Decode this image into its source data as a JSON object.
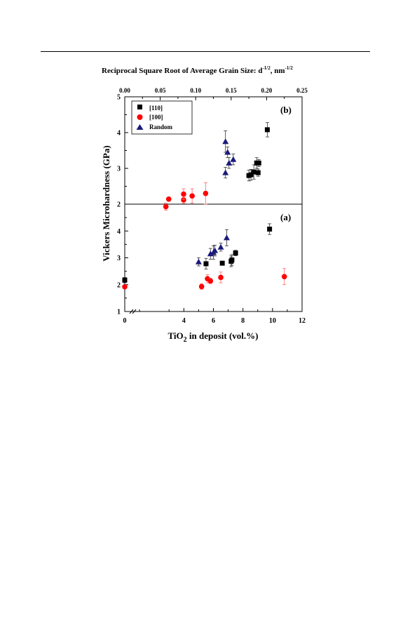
{
  "chart_data": {
    "top_axis_label": "Reciprocal Square Root of Average Grain Size:  d",
    "top_axis_label_sup1": "-1/2",
    "top_axis_label_mid": ", nm",
    "top_axis_label_sup2": "-1/2",
    "top_axis": {
      "range": [
        0.0,
        0.25
      ],
      "ticks": [
        "0.00",
        "0.05",
        "0.10",
        "0.15",
        "0.20",
        "0.25"
      ]
    },
    "ylabel": "Vickers Microhardness (GPa)",
    "xlabel_part1": "TiO",
    "xlabel_sub": "2",
    "xlabel_part2": " in deposit (vol.%)",
    "legend": [
      "[110]",
      "[100]",
      "Random"
    ],
    "colors": {
      "[110]": "#000000",
      "[100]": "#ff0000",
      "Random": "#1a1a7a"
    },
    "panels": [
      {
        "label": "(b)",
        "type": "scatter",
        "x_axis": "top",
        "xlim": [
          0.0,
          0.25
        ],
        "ylim": [
          2,
          5
        ],
        "y_ticks": [
          "2",
          "3",
          "4",
          "5"
        ],
        "series": [
          {
            "name": "[110]",
            "marker": "square",
            "points": [
              {
                "x": 0.175,
                "y": 2.8,
                "err": 0.15
              },
              {
                "x": 0.178,
                "y": 2.82,
                "err": 0.15
              },
              {
                "x": 0.182,
                "y": 2.9,
                "err": 0.2
              },
              {
                "x": 0.186,
                "y": 3.15,
                "err": 0.15
              },
              {
                "x": 0.188,
                "y": 2.88,
                "err": 0.1
              },
              {
                "x": 0.189,
                "y": 3.15,
                "err": 0.1
              },
              {
                "x": 0.201,
                "y": 4.08,
                "err": 0.2
              }
            ]
          },
          {
            "name": "[100]",
            "marker": "circle",
            "points": [
              {
                "x": 0.058,
                "y": 1.93,
                "err": 0.1
              },
              {
                "x": 0.062,
                "y": 2.14,
                "err": 0.05
              },
              {
                "x": 0.083,
                "y": 2.12,
                "err": 0.1
              },
              {
                "x": 0.083,
                "y": 2.28,
                "err": 0.15
              },
              {
                "x": 0.095,
                "y": 2.23,
                "err": 0.2
              },
              {
                "x": 0.114,
                "y": 2.3,
                "err": 0.3
              }
            ]
          },
          {
            "name": "Random",
            "marker": "triangle",
            "points": [
              {
                "x": 0.142,
                "y": 3.75,
                "err": 0.3
              },
              {
                "x": 0.142,
                "y": 2.88,
                "err": 0.15
              },
              {
                "x": 0.145,
                "y": 3.45,
                "err": 0.15
              },
              {
                "x": 0.147,
                "y": 3.15,
                "err": 0.15
              },
              {
                "x": 0.153,
                "y": 3.25,
                "err": 0.15
              }
            ]
          }
        ]
      },
      {
        "label": "(a)",
        "type": "scatter",
        "x_axis": "bottom",
        "xlim": [
          0,
          12
        ],
        "x_ticks": [
          "0",
          "4",
          "6",
          "8",
          "10",
          "12"
        ],
        "ylim": [
          1,
          5
        ],
        "y_ticks": [
          "1",
          "2",
          "3",
          "4"
        ],
        "series": [
          {
            "name": "[110]",
            "marker": "square",
            "points": [
              {
                "x": 0.0,
                "y": 2.17,
                "err": 0.1
              },
              {
                "x": 5.5,
                "y": 2.78,
                "err": 0.2
              },
              {
                "x": 6.6,
                "y": 2.8,
                "err": 0.05
              },
              {
                "x": 7.2,
                "y": 2.87,
                "err": 0.2
              },
              {
                "x": 7.25,
                "y": 2.92,
                "err": 0.2
              },
              {
                "x": 7.5,
                "y": 3.18,
                "err": 0.1
              },
              {
                "x": 9.8,
                "y": 4.07,
                "err": 0.2
              }
            ]
          },
          {
            "name": "[100]",
            "marker": "circle",
            "points": [
              {
                "x": 0.0,
                "y": 1.92,
                "err": 0.05
              },
              {
                "x": 5.2,
                "y": 1.93,
                "err": 0.1
              },
              {
                "x": 5.6,
                "y": 2.22,
                "err": 0.15
              },
              {
                "x": 5.8,
                "y": 2.14,
                "err": 0.1
              },
              {
                "x": 6.5,
                "y": 2.27,
                "err": 0.2
              },
              {
                "x": 10.8,
                "y": 2.3,
                "err": 0.3
              }
            ]
          },
          {
            "name": "Random",
            "marker": "triangle",
            "points": [
              {
                "x": 5.0,
                "y": 2.85,
                "err": 0.15
              },
              {
                "x": 5.8,
                "y": 3.15,
                "err": 0.2
              },
              {
                "x": 6.0,
                "y": 3.2,
                "err": 0.25
              },
              {
                "x": 6.1,
                "y": 3.27,
                "err": 0.2
              },
              {
                "x": 6.5,
                "y": 3.4,
                "err": 0.15
              },
              {
                "x": 6.9,
                "y": 3.75,
                "err": 0.3
              }
            ]
          }
        ]
      }
    ]
  }
}
